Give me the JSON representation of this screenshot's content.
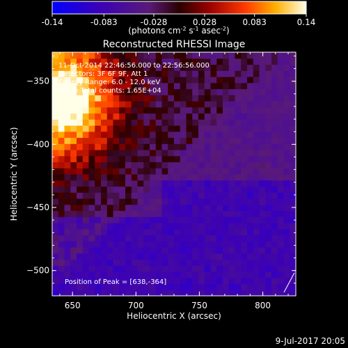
{
  "chart_data": {
    "type": "heatmap",
    "title": "Reconstructed RHESSI Image",
    "xlabel": "Heliocentric X (arcsec)",
    "ylabel": "Heliocentric Y (arcsec)",
    "xlim": [
      634,
      826
    ],
    "ylim": [
      -520,
      -327
    ],
    "xticks": [
      650,
      700,
      750,
      800
    ],
    "yticks": [
      -350,
      -400,
      -450,
      -500
    ],
    "colorbar": {
      "min": -0.14,
      "max": 0.14,
      "ticks": [
        "-0.14",
        "-0.083",
        "-0.028",
        "0.028",
        "0.083",
        "0.14"
      ],
      "ticks_numeric": [
        -0.14,
        -0.083,
        -0.028,
        0.028,
        0.083,
        0.14
      ],
      "colormap": "hot-blue",
      "units_parts": {
        "prefix": "(photons cm",
        "exp1": "-2",
        "mid1": " s",
        "exp2": "-1",
        "mid2": " asec",
        "exp3": "-2",
        "suffix": ")"
      }
    },
    "annotations": [
      "11-Oct-2014 22:46:56.000 to 22:56:56.000",
      "Detectors: 3F 6F 9F, Att 1",
      "Energy Range: 6.0 - 12.0 keV",
      "Clean    Total counts: 1.65E+04"
    ],
    "peak": {
      "label": "Position of Peak = [638,-364]",
      "x": 638,
      "y": -364
    },
    "image_grid": {
      "nx": 40,
      "ny": 40,
      "description": "bright emission concentrated at upper-left corner near the peak, mottled red/purple band along left, blue/purple background elsewhere"
    }
  },
  "footer": {
    "date": "9-Jul-2017 20:05"
  }
}
